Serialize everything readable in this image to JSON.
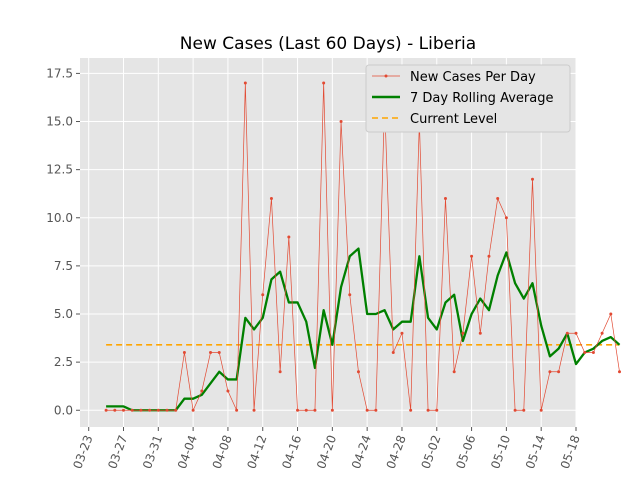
{
  "chart_data": {
    "type": "line",
    "title": "New Cases (Last 60 Days) - Liberia",
    "xlabel": "",
    "ylabel": "",
    "x_start": "2020-03-25",
    "xlim": [
      "2020-03-22",
      "2020-05-18"
    ],
    "ylim": [
      -0.87,
      18.3
    ],
    "x_ticks": [
      "03-23",
      "03-27",
      "03-31",
      "04-04",
      "04-08",
      "04-12",
      "04-16",
      "04-20",
      "04-24",
      "04-28",
      "05-02",
      "05-06",
      "05-10",
      "05-14",
      "05-18"
    ],
    "y_ticks": [
      "0.0",
      "2.5",
      "5.0",
      "7.5",
      "10.0",
      "12.5",
      "15.0",
      "17.5"
    ],
    "grid": true,
    "legend_position": "top-right",
    "series": [
      {
        "name": "New Cases Per Day",
        "color": "#E24A33",
        "values": [
          0,
          0,
          0,
          0,
          0,
          0,
          0,
          0,
          0,
          3,
          0,
          1,
          3,
          3,
          1,
          0,
          17,
          0,
          6,
          11,
          2,
          9,
          0,
          0,
          0,
          17,
          0,
          15,
          6,
          2,
          0,
          0,
          16,
          3,
          4,
          0,
          15,
          0,
          0,
          11,
          2,
          4,
          8,
          4,
          8,
          11,
          10,
          0,
          0,
          12,
          0,
          2,
          2,
          4,
          4,
          3,
          3,
          4,
          5,
          2
        ]
      },
      {
        "name": "7 Day Rolling Average",
        "color": "#008000",
        "values": [
          0.2,
          0.2,
          0.2,
          0,
          0,
          0,
          0,
          0,
          0,
          0.6,
          0.6,
          0.8,
          1.4,
          2.0,
          1.6,
          1.6,
          4.8,
          4.2,
          4.8,
          6.8,
          7.2,
          5.6,
          5.6,
          4.6,
          2.2,
          5.2,
          3.4,
          6.4,
          8.0,
          8.4,
          5.0,
          5.0,
          5.2,
          4.2,
          4.6,
          4.6,
          8.0,
          4.8,
          4.2,
          5.6,
          6.0,
          3.6,
          5.0,
          5.8,
          5.2,
          7.0,
          8.2,
          6.6,
          5.8,
          6.6,
          4.4,
          2.8,
          3.2,
          4.0,
          2.4,
          3.0,
          3.2,
          3.6,
          3.8,
          3.4
        ]
      },
      {
        "name": "Current Level",
        "color": "#FFA500",
        "values": [
          3.4,
          3.4
        ]
      }
    ]
  }
}
